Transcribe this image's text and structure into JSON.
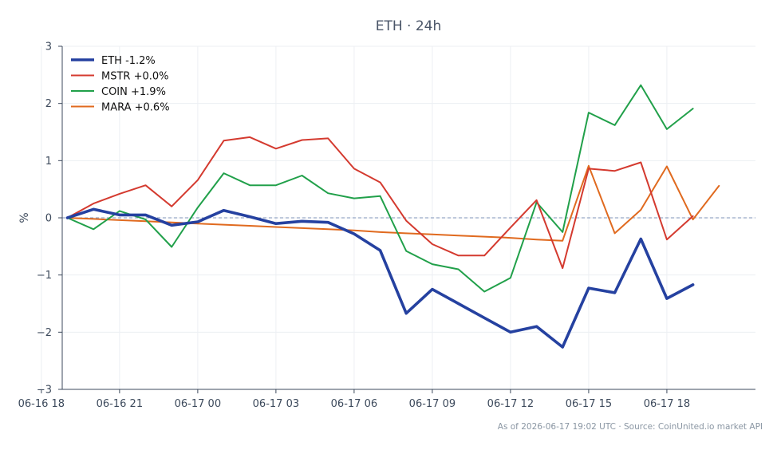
{
  "chart_data": {
    "type": "line",
    "title": "ETH · 24h",
    "ylabel": "%",
    "xlabel": "",
    "ylim": [
      -3,
      3
    ],
    "yticks": [
      3,
      2,
      1,
      0,
      -1,
      -2,
      -3
    ],
    "ytick_labels": [
      "3",
      "2",
      "1",
      "0",
      "−1",
      "−2",
      "−3"
    ],
    "x_hours": [
      0,
      1,
      2,
      3,
      4,
      5,
      6,
      7,
      8,
      9,
      10,
      11,
      12,
      13,
      14,
      15,
      16,
      17,
      18,
      19,
      20,
      21,
      22,
      23,
      24,
      25
    ],
    "xlim_hours": [
      -0.2,
      26.4
    ],
    "xticks_hours": [
      -1,
      2,
      5,
      8,
      11,
      14,
      17,
      20,
      23
    ],
    "xtick_labels": [
      "06-16 18",
      "06-16 21",
      "06-17 00",
      "06-17 03",
      "06-17 06",
      "06-17 09",
      "06-17 12",
      "06-17 15",
      "06-17 18"
    ],
    "grid": true,
    "zero_line": true,
    "legend_position": "top-left",
    "series": [
      {
        "name": "ETH -1.2%",
        "color": "#2541a0",
        "emphasis": true,
        "values": [
          0.0,
          0.15,
          0.05,
          0.05,
          -0.13,
          -0.07,
          0.13,
          0.02,
          -0.1,
          -0.06,
          -0.08,
          -0.28,
          -0.57,
          -1.67,
          -1.25,
          -1.5,
          -1.75,
          -2.0,
          -1.9,
          -2.26,
          -1.23,
          -1.31,
          -0.37,
          -1.41,
          -1.17
        ]
      },
      {
        "name": "MSTR +0.0%",
        "color": "#d43a2f",
        "values": [
          0.0,
          0.25,
          0.42,
          0.57,
          0.2,
          0.66,
          1.35,
          1.41,
          1.21,
          1.36,
          1.39,
          0.86,
          0.62,
          -0.05,
          -0.46,
          -0.66,
          -0.66,
          -0.17,
          0.31,
          -0.88,
          0.86,
          0.82,
          0.97,
          -0.38,
          0.03
        ]
      },
      {
        "name": "COIN +1.9%",
        "color": "#21a04a",
        "values": [
          0.0,
          -0.2,
          0.12,
          -0.03,
          -0.51,
          0.18,
          0.78,
          0.57,
          0.57,
          0.74,
          0.43,
          0.34,
          0.38,
          -0.58,
          -0.81,
          -0.9,
          -1.29,
          -1.05,
          0.27,
          -0.25,
          1.84,
          1.62,
          2.32,
          1.55,
          1.91
        ]
      },
      {
        "name": "MARA +0.6%",
        "color": "#e06a1f",
        "values": [
          0.0,
          -0.02,
          -0.04,
          -0.06,
          -0.08,
          -0.1,
          -0.12,
          -0.14,
          -0.16,
          -0.18,
          -0.2,
          -0.22,
          -0.25,
          -0.27,
          -0.29,
          -0.31,
          -0.33,
          -0.35,
          -0.38,
          -0.4,
          0.91,
          -0.27,
          0.14,
          0.9,
          -0.03,
          0.56
        ]
      }
    ]
  },
  "footnote": "As of 2026-06-17 19:02 UTC · Source: CoinUnited.io market API"
}
